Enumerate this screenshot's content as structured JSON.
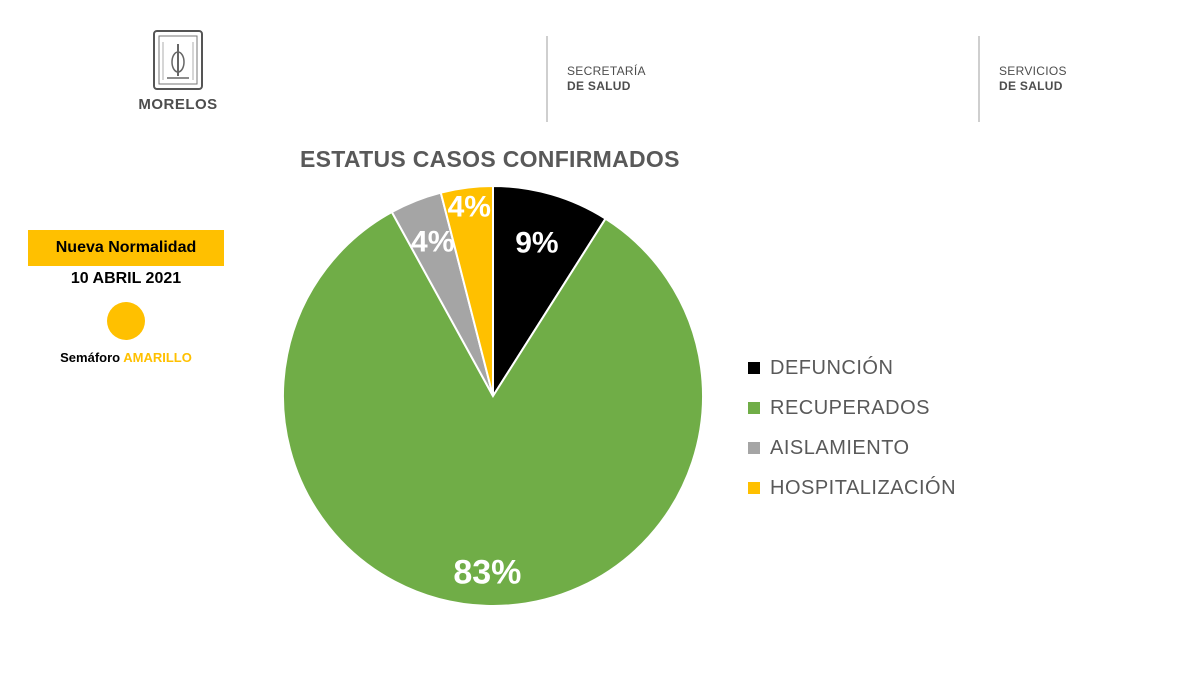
{
  "header": {
    "logo_text": "MORELOS",
    "agency1": {
      "line1": "SECRETARÍA",
      "line2": "DE SALUD"
    },
    "agency2": {
      "line1": "SERVICIOS",
      "line2": "DE SALUD"
    },
    "logo_icon": "state-seal-icon"
  },
  "status": {
    "phase": "Nueva Normalidad",
    "date": "10 ABRIL 2021",
    "semaforo_label": "Semáforo",
    "semaforo_color_name": "AMARILLO",
    "semaforo_color": "#ffc000"
  },
  "chart_data": {
    "type": "pie",
    "title": "ESTATUS CASOS CONFIRMADOS",
    "legend_position": "right",
    "slices": [
      {
        "name": "DEFUNCIÓN",
        "value": 9,
        "label": "9%",
        "color": "#000000",
        "label_color": "#ffffff"
      },
      {
        "name": "RECUPERADOS",
        "value": 83,
        "label": "83%",
        "color": "#70ad47",
        "label_color": "#ffffff"
      },
      {
        "name": "AISLAMIENTO",
        "value": 4,
        "label": "4%",
        "color": "#a5a5a5",
        "label_color": "#ffffff"
      },
      {
        "name": "HOSPITALIZACIÓN",
        "value": 4,
        "label": "4%",
        "color": "#ffc000",
        "label_color": "#ffffff"
      }
    ]
  }
}
